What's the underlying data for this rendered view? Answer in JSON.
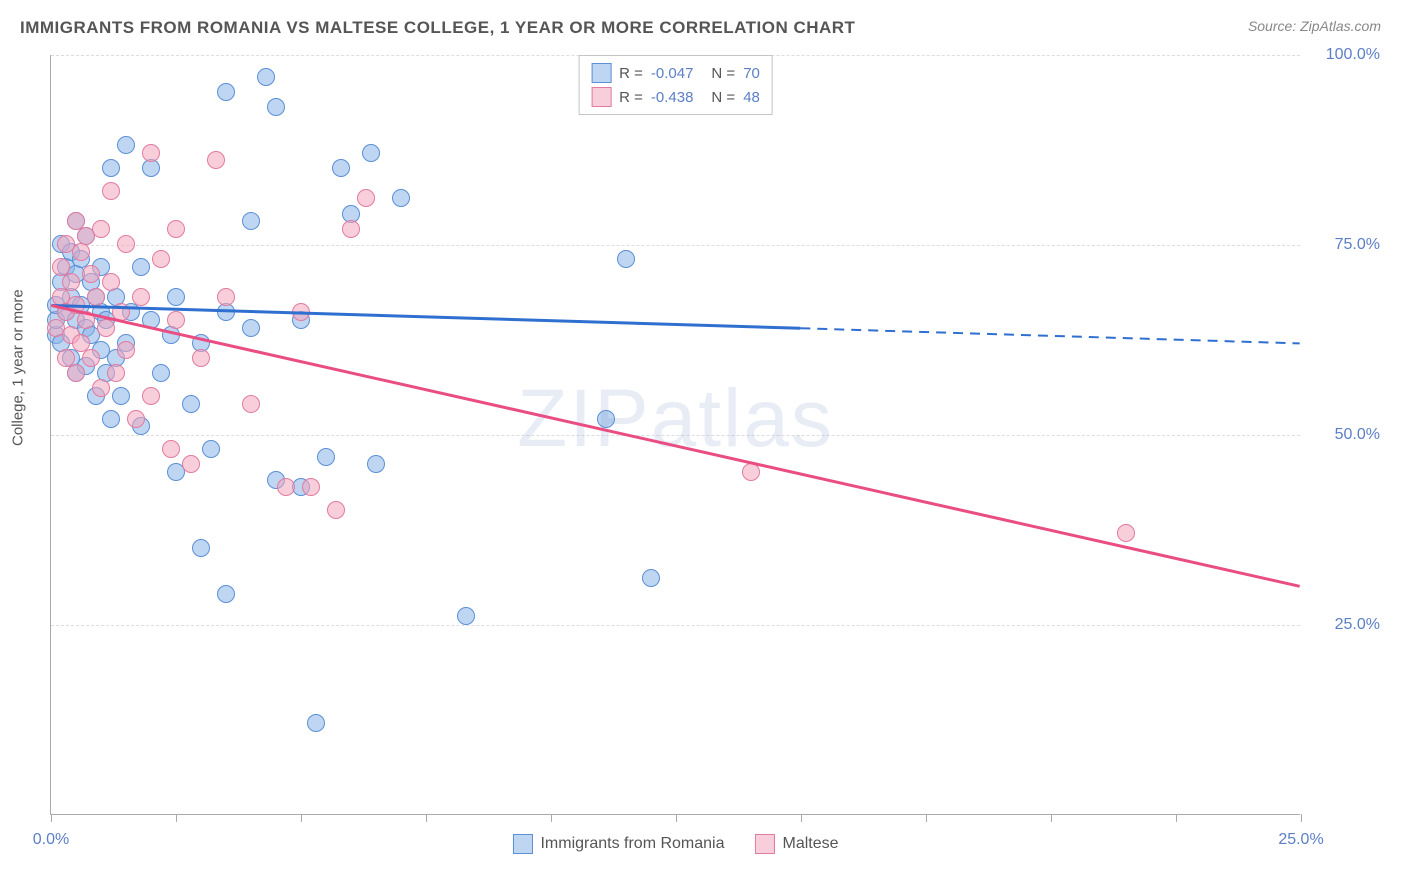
{
  "title": "IMMIGRANTS FROM ROMANIA VS MALTESE COLLEGE, 1 YEAR OR MORE CORRELATION CHART",
  "source": "Source: ZipAtlas.com",
  "watermark": "ZIPatlas",
  "y_axis_label": "College, 1 year or more",
  "chart": {
    "type": "scatter",
    "background_color": "#ffffff",
    "grid_color": "#dddddd",
    "axis_color": "#aaaaaa",
    "tick_label_color": "#5b7fc7",
    "text_color": "#555555",
    "xlim": [
      0,
      25
    ],
    "ylim": [
      0,
      100
    ],
    "x_ticks": [
      0,
      2.5,
      5,
      7.5,
      10,
      12.5,
      15,
      17.5,
      20,
      22.5,
      25
    ],
    "x_tick_labels": {
      "0": "0.0%",
      "25": "25.0%"
    },
    "y_ticks": [
      25,
      50,
      75,
      100
    ],
    "y_tick_labels": {
      "25": "25.0%",
      "50": "50.0%",
      "75": "75.0%",
      "100": "100.0%"
    },
    "series": [
      {
        "name": "Immigrants from Romania",
        "fill_color": "rgba(138, 180, 232, 0.55)",
        "stroke_color": "#5b8fd6",
        "line_color": "#2f6fd0",
        "R": "-0.047",
        "N": "70",
        "regression": {
          "x1": 0,
          "y1": 67,
          "solid_to_x": 15,
          "solid_to_y": 64,
          "x2": 25,
          "y2": 62
        },
        "points": [
          [
            0.1,
            63
          ],
          [
            0.1,
            65
          ],
          [
            0.1,
            67
          ],
          [
            0.2,
            62
          ],
          [
            0.2,
            70
          ],
          [
            0.2,
            75
          ],
          [
            0.3,
            66
          ],
          [
            0.3,
            72
          ],
          [
            0.4,
            60
          ],
          [
            0.4,
            68
          ],
          [
            0.4,
            74
          ],
          [
            0.5,
            58
          ],
          [
            0.5,
            65
          ],
          [
            0.5,
            71
          ],
          [
            0.5,
            78
          ],
          [
            0.6,
            67
          ],
          [
            0.6,
            73
          ],
          [
            0.7,
            59
          ],
          [
            0.7,
            64
          ],
          [
            0.7,
            76
          ],
          [
            0.8,
            63
          ],
          [
            0.8,
            70
          ],
          [
            0.9,
            55
          ],
          [
            0.9,
            68
          ],
          [
            1.0,
            61
          ],
          [
            1.0,
            66
          ],
          [
            1.0,
            72
          ],
          [
            1.1,
            58
          ],
          [
            1.1,
            65
          ],
          [
            1.2,
            52
          ],
          [
            1.2,
            85
          ],
          [
            1.3,
            60
          ],
          [
            1.3,
            68
          ],
          [
            1.4,
            55
          ],
          [
            1.5,
            62
          ],
          [
            1.5,
            88
          ],
          [
            1.6,
            66
          ],
          [
            1.8,
            51
          ],
          [
            1.8,
            72
          ],
          [
            2.0,
            65
          ],
          [
            2.0,
            85
          ],
          [
            2.2,
            58
          ],
          [
            2.4,
            63
          ],
          [
            2.5,
            45
          ],
          [
            2.5,
            68
          ],
          [
            2.8,
            54
          ],
          [
            3.0,
            35
          ],
          [
            3.0,
            62
          ],
          [
            3.2,
            48
          ],
          [
            3.5,
            66
          ],
          [
            3.5,
            95
          ],
          [
            3.5,
            29
          ],
          [
            4.0,
            64
          ],
          [
            4.0,
            78
          ],
          [
            4.3,
            97
          ],
          [
            4.5,
            44
          ],
          [
            4.5,
            93
          ],
          [
            5.0,
            43
          ],
          [
            5.0,
            65
          ],
          [
            5.3,
            12
          ],
          [
            5.5,
            47
          ],
          [
            5.8,
            85
          ],
          [
            6.0,
            79
          ],
          [
            6.4,
            87
          ],
          [
            6.5,
            46
          ],
          [
            7.0,
            81
          ],
          [
            8.3,
            26
          ],
          [
            11.1,
            52
          ],
          [
            11.5,
            73
          ],
          [
            12.0,
            31
          ]
        ]
      },
      {
        "name": "Maltese",
        "fill_color": "rgba(244, 166, 190, 0.55)",
        "stroke_color": "#e17ba0",
        "line_color": "#e94d82",
        "R": "-0.438",
        "N": "48",
        "regression": {
          "x1": 0,
          "y1": 67,
          "solid_to_x": 25,
          "solid_to_y": 30,
          "x2": 25,
          "y2": 30
        },
        "points": [
          [
            0.1,
            64
          ],
          [
            0.2,
            68
          ],
          [
            0.2,
            72
          ],
          [
            0.3,
            60
          ],
          [
            0.3,
            66
          ],
          [
            0.3,
            75
          ],
          [
            0.4,
            63
          ],
          [
            0.4,
            70
          ],
          [
            0.5,
            58
          ],
          [
            0.5,
            67
          ],
          [
            0.5,
            78
          ],
          [
            0.6,
            62
          ],
          [
            0.6,
            74
          ],
          [
            0.7,
            65
          ],
          [
            0.7,
            76
          ],
          [
            0.8,
            60
          ],
          [
            0.8,
            71
          ],
          [
            0.9,
            68
          ],
          [
            1.0,
            56
          ],
          [
            1.0,
            77
          ],
          [
            1.1,
            64
          ],
          [
            1.2,
            70
          ],
          [
            1.2,
            82
          ],
          [
            1.3,
            58
          ],
          [
            1.4,
            66
          ],
          [
            1.5,
            61
          ],
          [
            1.5,
            75
          ],
          [
            1.7,
            52
          ],
          [
            1.8,
            68
          ],
          [
            2.0,
            55
          ],
          [
            2.0,
            87
          ],
          [
            2.2,
            73
          ],
          [
            2.4,
            48
          ],
          [
            2.5,
            65
          ],
          [
            2.5,
            77
          ],
          [
            2.8,
            46
          ],
          [
            3.0,
            60
          ],
          [
            3.3,
            86
          ],
          [
            3.5,
            68
          ],
          [
            4.0,
            54
          ],
          [
            4.7,
            43
          ],
          [
            5.0,
            66
          ],
          [
            5.2,
            43
          ],
          [
            5.7,
            40
          ],
          [
            6.0,
            77
          ],
          [
            6.3,
            81
          ],
          [
            14.0,
            45
          ],
          [
            21.5,
            37
          ]
        ]
      }
    ]
  },
  "legend_bottom": [
    {
      "label": "Immigrants from Romania",
      "fill": "rgba(138, 180, 232, 0.55)",
      "stroke": "#5b8fd6"
    },
    {
      "label": "Maltese",
      "fill": "rgba(244, 166, 190, 0.55)",
      "stroke": "#e17ba0"
    }
  ]
}
